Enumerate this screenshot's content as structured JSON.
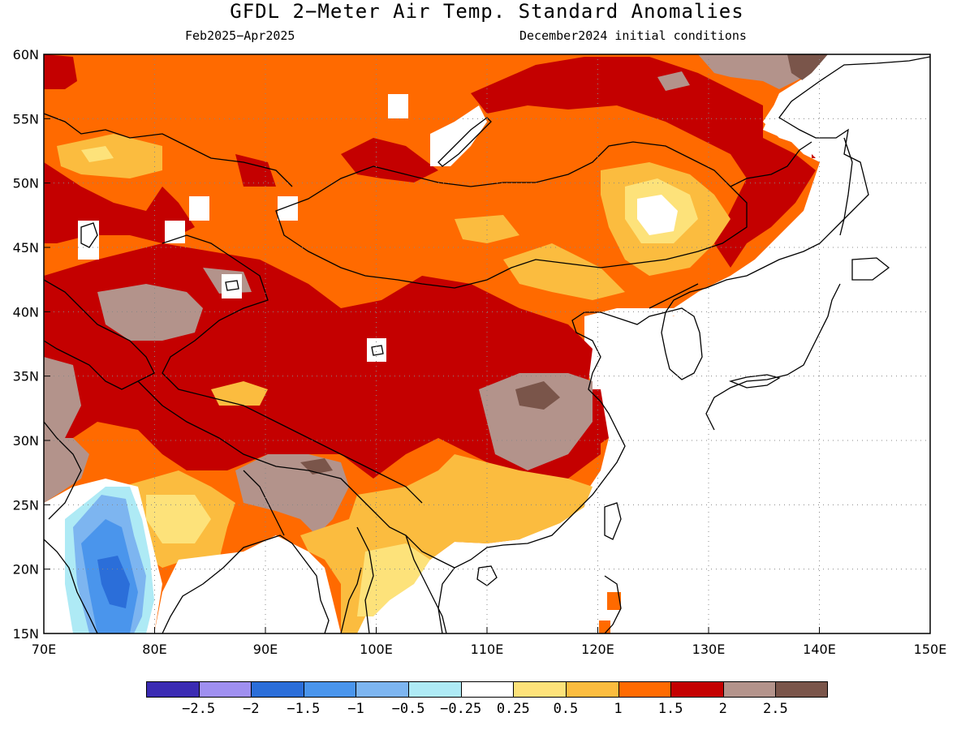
{
  "header": {
    "title": "GFDL 2−Meter Air Temp. Standard Anomalies",
    "period": "Feb2025−Apr2025",
    "initial_conditions": "December2024 initial conditions"
  },
  "map": {
    "lon_labels": [
      "70E",
      "80E",
      "90E",
      "100E",
      "110E",
      "120E",
      "130E",
      "140E",
      "150E"
    ],
    "lat_labels": [
      "60N",
      "55N",
      "50N",
      "45N",
      "40N",
      "35N",
      "30N",
      "25N",
      "20N",
      "15N"
    ],
    "lon_range": [
      70,
      150
    ],
    "lat_range": [
      15,
      60
    ],
    "gridlines": "dotted",
    "ocean_color": "#ffffff",
    "coastline_color": "#000000"
  },
  "legend": {
    "colors": [
      "#3b2bb3",
      "#9f8ff0",
      "#2b6ed9",
      "#4a95ec",
      "#7db5f0",
      "#aeeaf5",
      "#ffffff",
      "#fde27a",
      "#fbbc3f",
      "#ff6a00",
      "#c40000",
      "#b3938b",
      "#7a554a"
    ],
    "labels": [
      "−2.5",
      "−2",
      "−1.5",
      "−1",
      "−0.5",
      "−0.25",
      "0.25",
      "0.5",
      "1",
      "1.5",
      "2",
      "2.5"
    ]
  },
  "chart_data": {
    "type": "heatmap",
    "title": "GFDL 2−Meter Air Temp. Standard Anomalies",
    "subtitle": "Feb2025−Apr2025",
    "xlim": [
      70,
      150
    ],
    "ylim": [
      15,
      60
    ],
    "x_ticks": [
      "70E",
      "80E",
      "90E",
      "100E",
      "110E",
      "120E",
      "130E",
      "140E",
      "150E"
    ],
    "y_ticks": [
      "15N",
      "20N",
      "25N",
      "30N",
      "35N",
      "40N",
      "45N",
      "50N",
      "55N",
      "60N"
    ],
    "colorbar_bounds": [
      -2.5,
      -2,
      -1.5,
      -1,
      -0.5,
      -0.25,
      0.25,
      0.5,
      1,
      1.5,
      2,
      2.5
    ],
    "regions": [
      {
        "area": "Siberia / northern Mongolia",
        "anomaly_range": [
          1,
          1.5
        ]
      },
      {
        "area": "Far northeast Siberia coast",
        "anomaly_range": [
          2,
          3
        ]
      },
      {
        "area": "Kazakhstan / Central Asia",
        "anomaly_range": [
          1,
          2
        ]
      },
      {
        "area": "Tibetan Plateau / western China",
        "anomaly_range": [
          1.5,
          2.5
        ]
      },
      {
        "area": "Central China (~112E, 32N)",
        "anomaly_range": [
          2,
          3
        ]
      },
      {
        "area": "Inner Mongolia / NE China (~124E, 47N)",
        "anomaly_range": [
          0.25,
          1
        ]
      },
      {
        "area": "Southern China / Indochina",
        "anomaly_range": [
          0.5,
          1.5
        ]
      },
      {
        "area": "Peninsular India",
        "anomaly_range": [
          -1.5,
          -0.25
        ]
      },
      {
        "area": "Korea / Japan coastal",
        "anomaly_range": [
          1,
          2
        ]
      }
    ]
  }
}
